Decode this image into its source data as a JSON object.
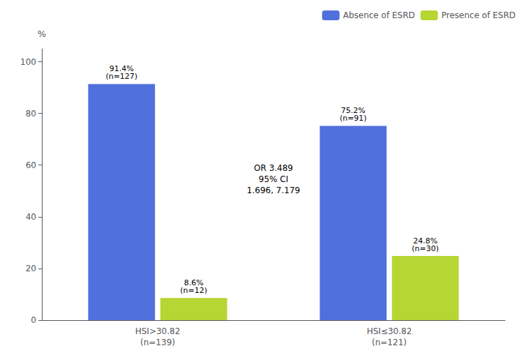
{
  "chart_data": {
    "type": "bar",
    "categories": [
      "HSI>30.82\n(n=139)",
      "HSI≤30.82\n(n=121)"
    ],
    "series": [
      {
        "name": "Absence of ESRD",
        "values": [
          91.4,
          75.2
        ],
        "value_labels": [
          "91.4%\n(n=127)",
          "75.2%\n(n=91)"
        ]
      },
      {
        "name": "Presence of ESRD",
        "values": [
          8.6,
          24.8
        ],
        "value_labels": [
          "8.6%\n(n=12)",
          "24.8%\n(n=30)"
        ]
      }
    ],
    "ylabel": "%",
    "ylim": [
      0,
      105
    ],
    "yticks": [
      0,
      20,
      40,
      60,
      80,
      100
    ],
    "annotation": "OR 3.489\n95% CI\n1.696, 7.179",
    "legend": "upper right",
    "data_labels": true,
    "grid": false
  }
}
